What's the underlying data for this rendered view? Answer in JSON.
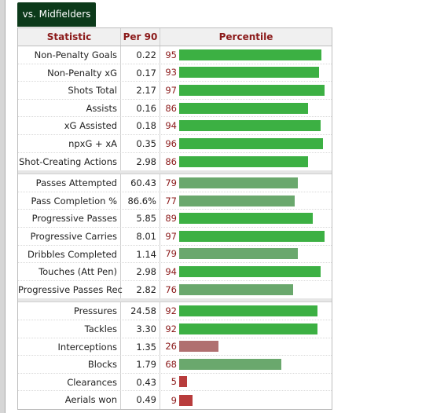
{
  "tab": {
    "label": "vs. Midfielders"
  },
  "headers": {
    "statistic": "Statistic",
    "per90": "Per 90",
    "percentile": "Percentile"
  },
  "colors": {
    "high": "#3cb043",
    "mid": "#6aa86d",
    "low": "#b07070",
    "verylow": "#b83c3c",
    "percentile_text": "#8b1a1a"
  },
  "groups": [
    [
      {
        "stat": "Non-Penalty Goals",
        "per90": "0.22",
        "pct": "95",
        "tier": "high"
      },
      {
        "stat": "Non-Penalty xG",
        "per90": "0.17",
        "pct": "93",
        "tier": "high"
      },
      {
        "stat": "Shots Total",
        "per90": "2.17",
        "pct": "97",
        "tier": "high"
      },
      {
        "stat": "Assists",
        "per90": "0.16",
        "pct": "86",
        "tier": "high"
      },
      {
        "stat": "xG Assisted",
        "per90": "0.18",
        "pct": "94",
        "tier": "high"
      },
      {
        "stat": "npxG + xA",
        "per90": "0.35",
        "pct": "96",
        "tier": "high"
      },
      {
        "stat": "Shot-Creating Actions",
        "per90": "2.98",
        "pct": "86",
        "tier": "high"
      }
    ],
    [
      {
        "stat": "Passes Attempted",
        "per90": "60.43",
        "pct": "79",
        "tier": "mid"
      },
      {
        "stat": "Pass Completion %",
        "per90": "86.6%",
        "pct": "77",
        "tier": "mid"
      },
      {
        "stat": "Progressive Passes",
        "per90": "5.85",
        "pct": "89",
        "tier": "high"
      },
      {
        "stat": "Progressive Carries",
        "per90": "8.01",
        "pct": "97",
        "tier": "high"
      },
      {
        "stat": "Dribbles Completed",
        "per90": "1.14",
        "pct": "79",
        "tier": "mid"
      },
      {
        "stat": "Touches (Att Pen)",
        "per90": "2.98",
        "pct": "94",
        "tier": "high"
      },
      {
        "stat": "Progressive Passes Rec",
        "per90": "2.82",
        "pct": "76",
        "tier": "mid"
      }
    ],
    [
      {
        "stat": "Pressures",
        "per90": "24.58",
        "pct": "92",
        "tier": "high"
      },
      {
        "stat": "Tackles",
        "per90": "3.30",
        "pct": "92",
        "tier": "high"
      },
      {
        "stat": "Interceptions",
        "per90": "1.35",
        "pct": "26",
        "tier": "low"
      },
      {
        "stat": "Blocks",
        "per90": "1.79",
        "pct": "68",
        "tier": "mid"
      },
      {
        "stat": "Clearances",
        "per90": "0.43",
        "pct": "5",
        "tier": "verylow"
      },
      {
        "stat": "Aerials won",
        "per90": "0.49",
        "pct": "9",
        "tier": "verylow"
      }
    ]
  ]
}
